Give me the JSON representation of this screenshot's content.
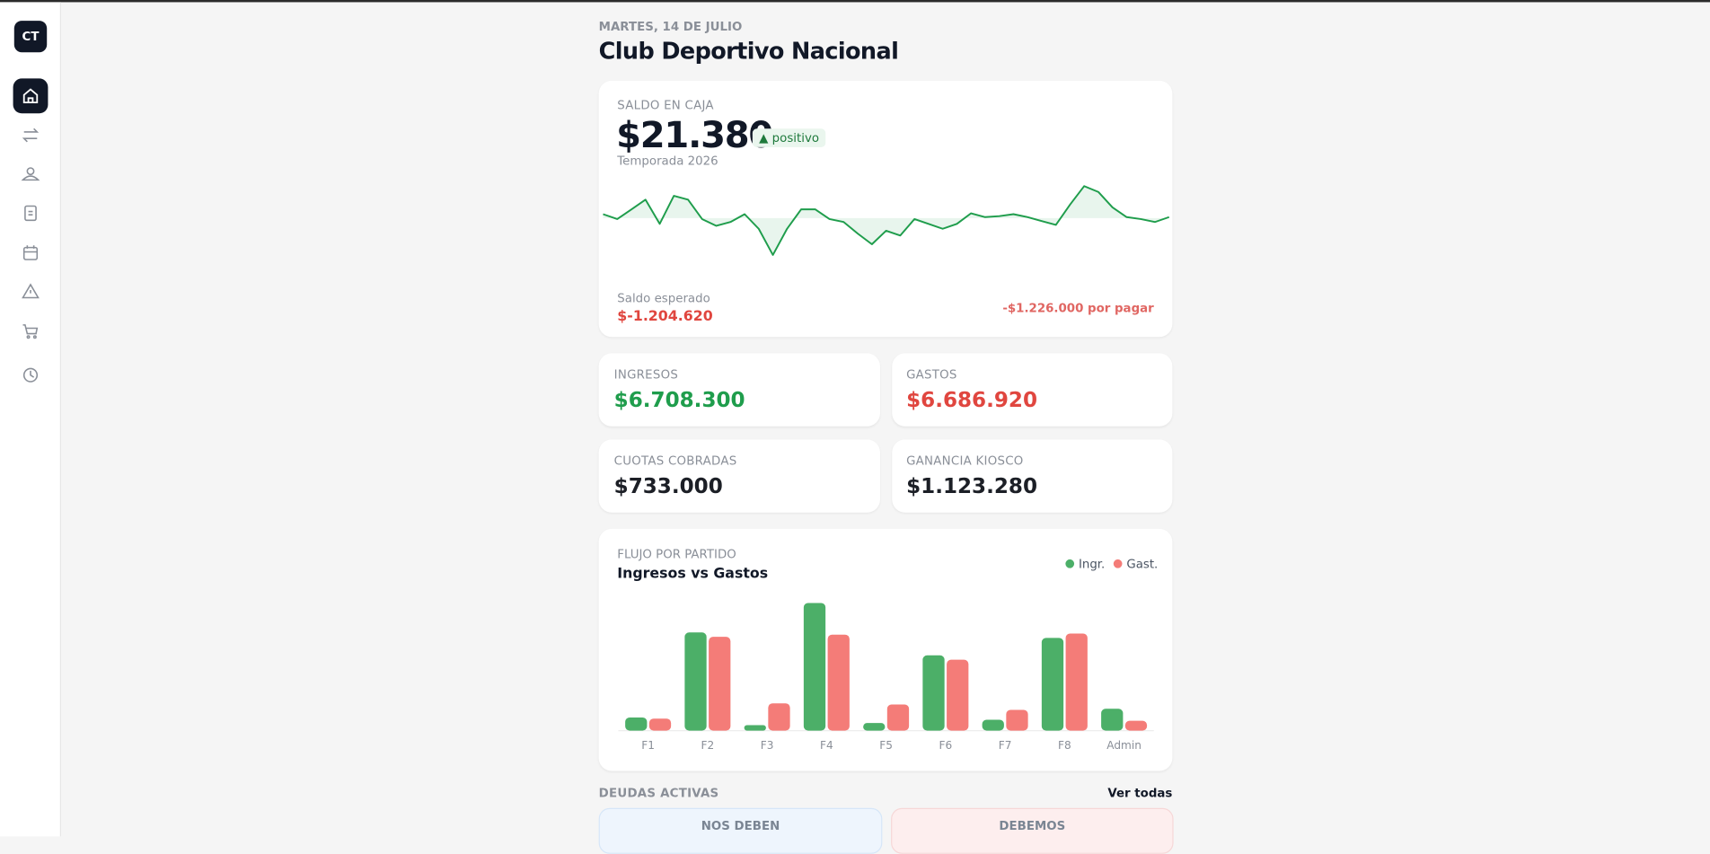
{
  "sidebar": {
    "logo": "CT"
  },
  "header": {
    "date": "MARTES, 14 DE JULIO",
    "title": "Club Deportivo Nacional"
  },
  "balance": {
    "label": "SALDO EN CAJA",
    "value": "$21.380",
    "badge": "positivo",
    "season": "Temporada 2026",
    "expected_label": "Saldo esperado",
    "expected_value": "$-1.204.620",
    "pending": "-$1.226.000 por pagar"
  },
  "stats": [
    {
      "label": "INGRESOS",
      "value": "$6.708.300"
    },
    {
      "label": "GASTOS",
      "value": "$6.686.920"
    },
    {
      "label": "CUOTAS COBRADAS",
      "value": "$733.000"
    },
    {
      "label": "GANANCIA KIOSCO",
      "value": "$1.123.280"
    }
  ],
  "debts": {
    "title": "DEUDAS ACTIVAS",
    "link": "Ver todas",
    "owed_to_us": "NOS DEBEN",
    "we_owe": "DEBEMOS"
  },
  "chart_data": [
    {
      "type": "line",
      "color": "#1f9d4c",
      "ylim": [
        -45,
        45
      ],
      "values": [
        4,
        -1,
        9,
        19,
        -6,
        23,
        19,
        -1,
        -8,
        -4,
        4,
        -11,
        -38,
        -11,
        9,
        9,
        -1,
        -4,
        -16,
        -27,
        -13,
        -18,
        -1,
        -6,
        -11,
        -6,
        5,
        1,
        2,
        4,
        1,
        -3,
        -7,
        14,
        33,
        27,
        11,
        1,
        -1,
        -4,
        1
      ]
    },
    {
      "type": "bar",
      "subtitle": "FLUJO POR PARTIDO",
      "title": "Ingresos vs Gastos",
      "ylim": [
        0,
        120
      ],
      "categories": [
        "F1",
        "F2",
        "F3",
        "F4",
        "F5",
        "F6",
        "F7",
        "F8",
        "Admin"
      ],
      "series": [
        {
          "name": "Ingr.",
          "color": "#4caf68",
          "values": [
            12,
            90,
            5,
            117,
            7,
            69,
            10,
            85,
            20
          ]
        },
        {
          "name": "Gast.",
          "color": "#f47c78",
          "values": [
            11,
            86,
            25,
            88,
            24,
            65,
            19,
            89,
            9
          ]
        }
      ]
    }
  ]
}
